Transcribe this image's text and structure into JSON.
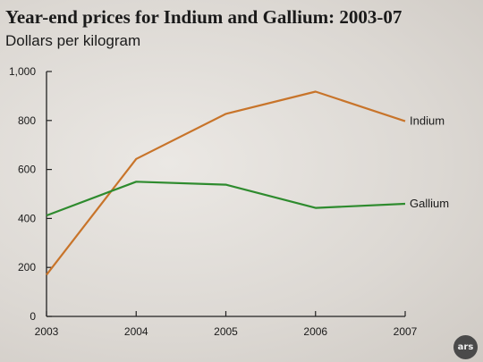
{
  "chart_data": {
    "type": "line",
    "title": "Year-end prices for Indium and Gallium: 2003-07",
    "subtitle": "Dollars per kilogram",
    "x": [
      "2003",
      "2004",
      "2005",
      "2006",
      "2007"
    ],
    "y_ticks": [
      "0",
      "200",
      "400",
      "600",
      "800",
      "1,000"
    ],
    "ylim": [
      0,
      1000
    ],
    "grid": false,
    "series": [
      {
        "name": "Indium",
        "color": "#c8742a",
        "values": [
          170,
          643,
          827,
          918,
          797
        ]
      },
      {
        "name": "Gallium",
        "color": "#2e8b2e",
        "values": [
          412,
          550,
          538,
          443,
          460
        ]
      }
    ]
  },
  "branding": {
    "logo_text": "ars"
  }
}
